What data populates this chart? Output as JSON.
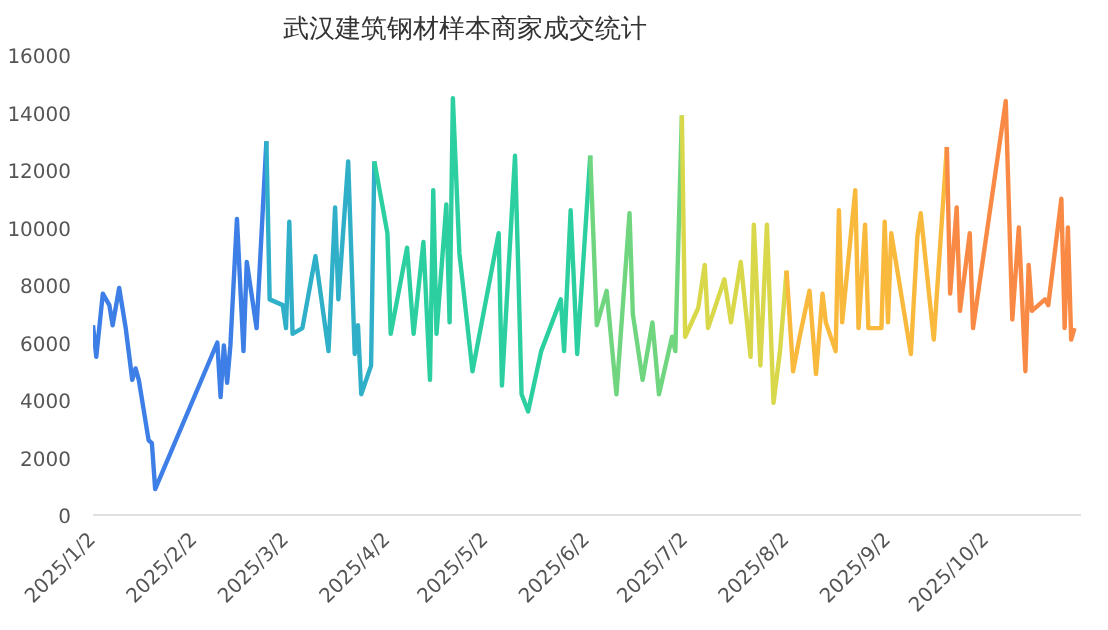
{
  "chart_data": {
    "type": "line",
    "title": "武汉建筑钢材样本商家成交统计",
    "xlim": [
      "2025-01-02",
      "2025-10-31"
    ],
    "xticks": [
      {
        "value": "2025-01-02",
        "label": "2025/1/2"
      },
      {
        "value": "2025-02-02",
        "label": "2025/2/2"
      },
      {
        "value": "2025-03-02",
        "label": "2025/3/2"
      },
      {
        "value": "2025-04-02",
        "label": "2025/4/2"
      },
      {
        "value": "2025-05-02",
        "label": "2025/5/2"
      },
      {
        "value": "2025-06-02",
        "label": "2025/6/2"
      },
      {
        "value": "2025-07-02",
        "label": "2025/7/2"
      },
      {
        "value": "2025-08-02",
        "label": "2025/8/2"
      },
      {
        "value": "2025-09-02",
        "label": "2025/9/2"
      },
      {
        "value": "2025-10-02",
        "label": "2025/10/2"
      }
    ],
    "ylim": [
      0,
      16000
    ],
    "yticks": [
      0,
      2000,
      4000,
      6000,
      8000,
      10000,
      12000,
      14000,
      16000
    ],
    "grid": false,
    "series": [
      {
        "color": "#3d7fe6",
        "x": [
          "2025-01-02",
          "2025-01-03",
          "2025-01-05",
          "2025-01-07",
          "2025-01-08",
          "2025-01-10",
          "2025-01-12",
          "2025-01-14",
          "2025-01-15",
          "2025-01-16",
          "2025-01-19",
          "2025-01-20",
          "2025-01-21",
          "2025-02-09",
          "2025-02-10",
          "2025-02-11",
          "2025-02-12",
          "2025-02-13",
          "2025-02-15",
          "2025-02-17",
          "2025-02-18",
          "2025-02-21",
          "2025-02-24"
        ],
        "values": [
          6600,
          5500,
          7700,
          7300,
          6600,
          7900,
          6500,
          4700,
          5100,
          4700,
          2600,
          2500,
          900,
          6000,
          4100,
          5900,
          4600,
          5900,
          10300,
          5700,
          8800,
          6500,
          13000
        ]
      },
      {
        "color": "#2fb0c8",
        "x": [
          "2025-02-24",
          "2025-02-25",
          "2025-03-01",
          "2025-03-02",
          "2025-03-03",
          "2025-03-04",
          "2025-03-07",
          "2025-03-11",
          "2025-03-15",
          "2025-03-17",
          "2025-03-18",
          "2025-03-21",
          "2025-03-23",
          "2025-03-24",
          "2025-03-25",
          "2025-03-28",
          "2025-03-29"
        ],
        "values": [
          13000,
          7500,
          7300,
          6500,
          10200,
          6300,
          6500,
          9000,
          5700,
          10700,
          7500,
          12300,
          5600,
          6600,
          4200,
          5200,
          12300
        ]
      },
      {
        "color": "#2ccf9f",
        "x": [
          "2025-03-29",
          "2025-04-02",
          "2025-04-03",
          "2025-04-08",
          "2025-04-10",
          "2025-04-13",
          "2025-04-15",
          "2025-04-16",
          "2025-04-17",
          "2025-04-20",
          "2025-04-21",
          "2025-04-22",
          "2025-04-24",
          "2025-04-28",
          "2025-05-06",
          "2025-05-07",
          "2025-05-11",
          "2025-05-12",
          "2025-05-13",
          "2025-05-15",
          "2025-05-19",
          "2025-05-25",
          "2025-05-26",
          "2025-05-28",
          "2025-05-30",
          "2025-06-03"
        ],
        "values": [
          12300,
          9800,
          6300,
          9300,
          6300,
          9500,
          4700,
          11300,
          6300,
          10800,
          6700,
          14500,
          9100,
          5000,
          9800,
          4500,
          12500,
          8500,
          4200,
          3600,
          5700,
          7500,
          5700,
          10600,
          5600,
          12500
        ]
      },
      {
        "color": "#6fd67f",
        "x": [
          "2025-06-03",
          "2025-06-05",
          "2025-06-08",
          "2025-06-11",
          "2025-06-15",
          "2025-06-16",
          "2025-06-19",
          "2025-06-22",
          "2025-06-24",
          "2025-06-28",
          "2025-06-29",
          "2025-07-01"
        ],
        "values": [
          12500,
          6600,
          7800,
          4200,
          10500,
          7000,
          4700,
          6700,
          4200,
          6200,
          5700,
          13900
        ]
      },
      {
        "color": "#d8d84a",
        "x": [
          "2025-07-01",
          "2025-07-02",
          "2025-07-06",
          "2025-07-08",
          "2025-07-09",
          "2025-07-14",
          "2025-07-16",
          "2025-07-19",
          "2025-07-22",
          "2025-07-23",
          "2025-07-25",
          "2025-07-27",
          "2025-07-29",
          "2025-07-31",
          "2025-08-02"
        ],
        "values": [
          13900,
          6200,
          7200,
          8700,
          6500,
          8200,
          6700,
          8800,
          5500,
          10100,
          5200,
          10100,
          3900,
          5700,
          8500
        ]
      },
      {
        "color": "#f9b93c",
        "x": [
          "2025-08-02",
          "2025-08-04",
          "2025-08-06",
          "2025-08-09",
          "2025-08-11",
          "2025-08-13",
          "2025-08-14",
          "2025-08-17",
          "2025-08-18",
          "2025-08-19",
          "2025-08-23",
          "2025-08-24",
          "2025-08-26",
          "2025-08-27",
          "2025-08-31",
          "2025-09-01",
          "2025-09-02",
          "2025-09-03",
          "2025-09-09",
          "2025-09-11",
          "2025-09-12",
          "2025-09-16",
          "2025-09-20"
        ],
        "values": [
          8500,
          5000,
          6200,
          7800,
          4900,
          7700,
          6700,
          5700,
          10600,
          6700,
          11300,
          6500,
          10100,
          6500,
          6500,
          10200,
          6700,
          9800,
          5600,
          9700,
          10500,
          6100,
          12800
        ]
      },
      {
        "color": "#f98a45",
        "x": [
          "2025-09-20",
          "2025-09-21",
          "2025-09-23",
          "2025-09-24",
          "2025-09-27",
          "2025-09-28",
          "2025-10-08",
          "2025-10-10",
          "2025-10-12",
          "2025-10-14",
          "2025-10-15",
          "2025-10-16",
          "2025-10-20",
          "2025-10-21",
          "2025-10-25",
          "2025-10-26",
          "2025-10-27",
          "2025-10-28",
          "2025-10-29"
        ],
        "values": [
          12800,
          7700,
          10700,
          7100,
          9800,
          6500,
          14400,
          6800,
          10000,
          5000,
          8700,
          7100,
          7500,
          7300,
          11000,
          6500,
          10000,
          6100,
          6500
        ]
      }
    ]
  }
}
